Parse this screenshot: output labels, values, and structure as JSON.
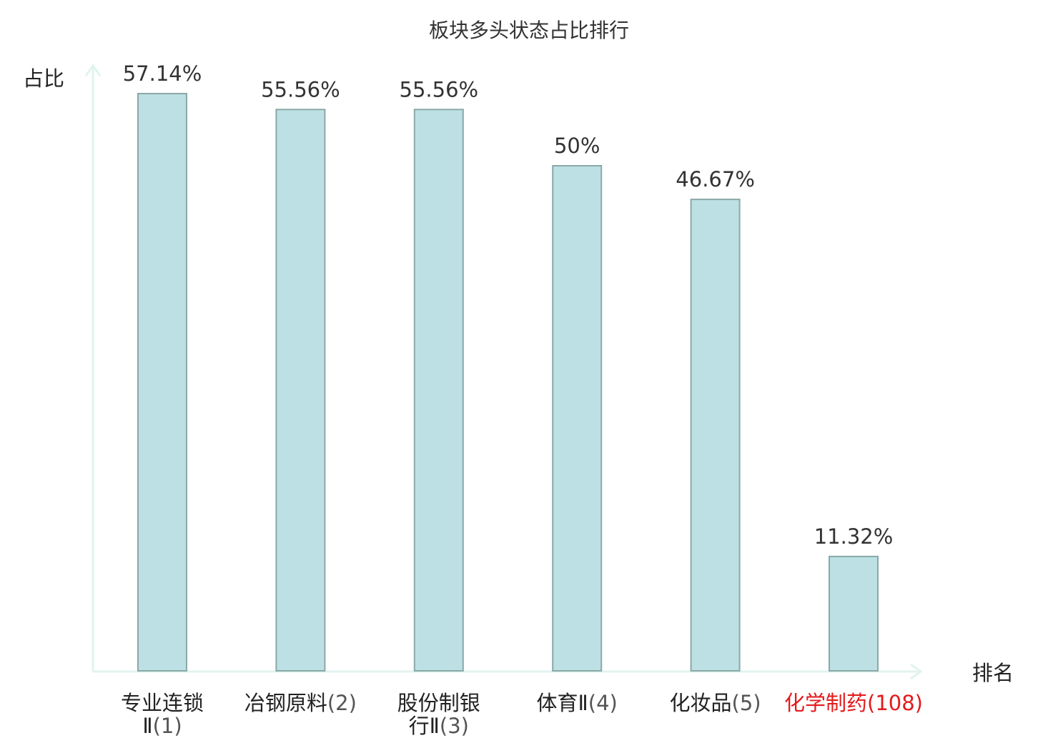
{
  "chart_data": {
    "type": "bar",
    "title": "板块多头状态占比排行",
    "ylabel": "占比",
    "xlabel": "排名",
    "categories": [
      {
        "name": "专业连锁",
        "line2": "Ⅱ",
        "rank": "(1)",
        "highlight": false
      },
      {
        "name": "冶钢原料",
        "line2": "",
        "rank": "(2)",
        "highlight": false
      },
      {
        "name": "股份制银",
        "line2": "行Ⅱ",
        "rank": "(3)",
        "highlight": false
      },
      {
        "name": "体育Ⅱ",
        "line2": "",
        "rank": "(4)",
        "highlight": false
      },
      {
        "name": "化妆品",
        "line2": "",
        "rank": "(5)",
        "highlight": false
      },
      {
        "name": "化学制药",
        "line2": "",
        "rank": "(108)",
        "highlight": true
      }
    ],
    "values": [
      57.14,
      55.56,
      55.56,
      50,
      46.67,
      11.32
    ],
    "value_labels": [
      "57.14%",
      "55.56%",
      "55.56%",
      "50%",
      "46.67%",
      "11.32%"
    ],
    "ylim": [
      0,
      57.14
    ],
    "grid": false,
    "colors": {
      "bar_fill": "#bce0e3",
      "bar_stroke": "#8aa8a8",
      "axis": "#e0f3ef",
      "text": "#333333",
      "highlight": "#e31a1c",
      "rank_text": "#555555"
    }
  }
}
